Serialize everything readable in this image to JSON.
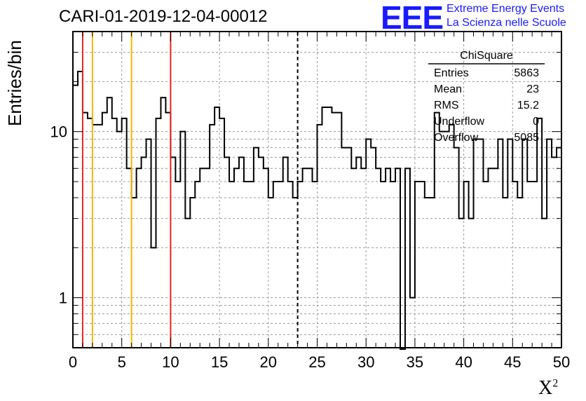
{
  "header": {
    "run_title": "CARI-01-2019-12-04-00012",
    "logo_text": "EEE",
    "logo_line1": "Extreme Energy Events",
    "logo_line2": "La Scienza nelle Scuole"
  },
  "colors": {
    "logo": "#1a1aff",
    "red_line": "#e8231c",
    "orange_line": "#f5b800",
    "histogram": "#000000",
    "grid": "#999999"
  },
  "stats_box": {
    "title": "ChiSquare",
    "rows": [
      {
        "label": "Entries",
        "value": "5863"
      },
      {
        "label": "Mean",
        "value": "23"
      },
      {
        "label": "RMS",
        "value": "15.2"
      },
      {
        "label": "Underflow",
        "value": "0"
      },
      {
        "label": "Overflow",
        "value": "5085"
      }
    ]
  },
  "chart_data": {
    "type": "histogram",
    "title": "CARI-01-2019-12-04-00012",
    "xlabel": "X²",
    "ylabel": "Entries/bin",
    "xlim": [
      0,
      50
    ],
    "ylim": [
      0.5,
      40
    ],
    "yscale": "log",
    "grid": true,
    "x_ticks": [
      "0",
      "5",
      "10",
      "15",
      "20",
      "25",
      "30",
      "35",
      "40",
      "45",
      "50"
    ],
    "y_ticks": [
      "1",
      "10"
    ],
    "bin_width": 0.5,
    "values": [
      19,
      23,
      13,
      12,
      11,
      11,
      13,
      16,
      12,
      10,
      12,
      6,
      4,
      6,
      7,
      9,
      2,
      12,
      16,
      13,
      7,
      5,
      10,
      3,
      4,
      5,
      6,
      6,
      11,
      14,
      12,
      7,
      5,
      6,
      7,
      5,
      5,
      8,
      7,
      6,
      4,
      5,
      5,
      7,
      5,
      4,
      5,
      6,
      6,
      5,
      11,
      14,
      14,
      13,
      13,
      8,
      8,
      6,
      7,
      6,
      9,
      8,
      6,
      5,
      6,
      5,
      6,
      0,
      6,
      1,
      5,
      5,
      4,
      4,
      13,
      10,
      10,
      11,
      8,
      3,
      5,
      3,
      9,
      9,
      5,
      6,
      6,
      9,
      4,
      9,
      5,
      4,
      9,
      5,
      5,
      12,
      3,
      9,
      7,
      8
    ],
    "vertical_lines": [
      {
        "x": 1,
        "color": "red",
        "style": "solid"
      },
      {
        "x": 2,
        "color": "orange",
        "style": "solid"
      },
      {
        "x": 6,
        "color": "orange",
        "style": "solid"
      },
      {
        "x": 10,
        "color": "red",
        "style": "solid"
      },
      {
        "x": 23,
        "color": "black",
        "style": "dashed"
      }
    ]
  }
}
